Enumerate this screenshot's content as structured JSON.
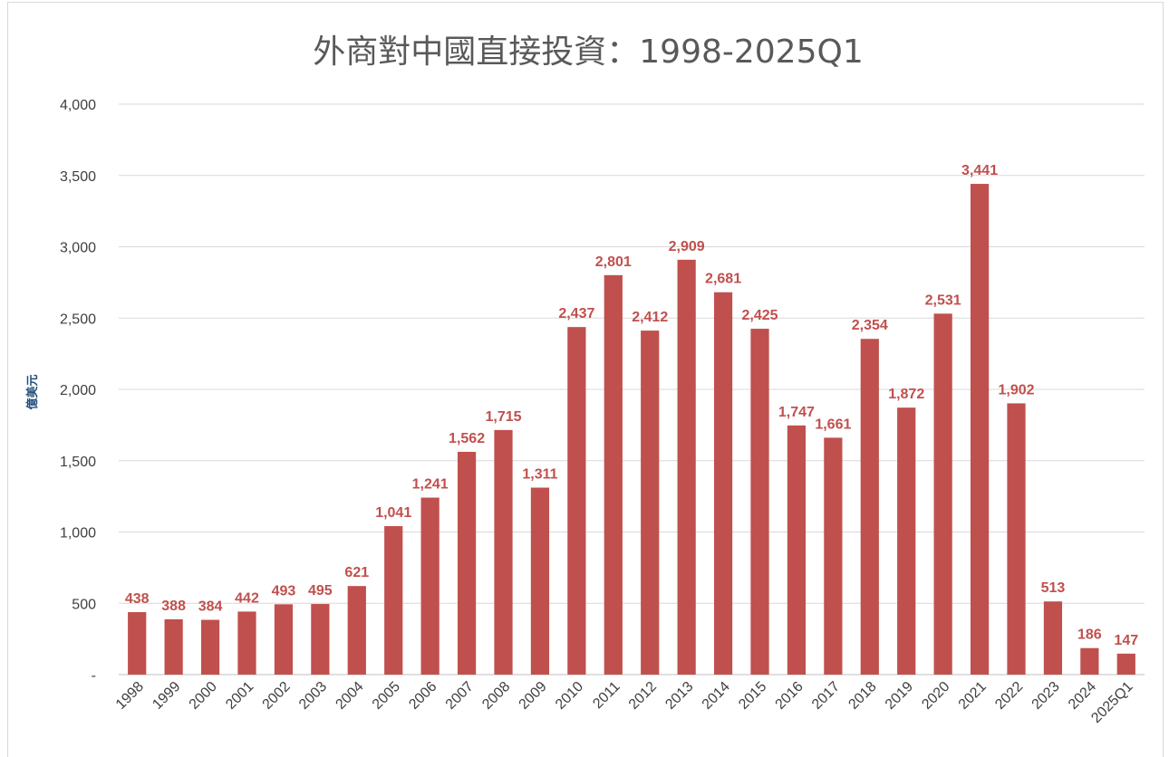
{
  "chart_data": {
    "type": "bar",
    "title": "外商對中國直接投資：1998-2025Q1",
    "ylabel": "億美元",
    "xlabel": "",
    "ylim": [
      0,
      4000
    ],
    "yticks": [
      0,
      500,
      1000,
      1500,
      2000,
      2500,
      3000,
      3500,
      4000
    ],
    "ytick_labels": [
      "-",
      "500",
      "1,000",
      "1,500",
      "2,000",
      "2,500",
      "3,000",
      "3,500",
      "4,000"
    ],
    "categories": [
      "1998",
      "1999",
      "2000",
      "2001",
      "2002",
      "2003",
      "2004",
      "2005",
      "2006",
      "2007",
      "2008",
      "2009",
      "2010",
      "2011",
      "2012",
      "2013",
      "2014",
      "2015",
      "2016",
      "2017",
      "2018",
      "2019",
      "2020",
      "2021",
      "2022",
      "2023",
      "2024",
      "2025Q1"
    ],
    "values": [
      438,
      388,
      384,
      442,
      493,
      495,
      621,
      1041,
      1241,
      1562,
      1715,
      1311,
      2437,
      2801,
      2412,
      2909,
      2681,
      2425,
      1747,
      1661,
      2354,
      1872,
      2531,
      3441,
      1902,
      513,
      186,
      147
    ],
    "value_labels": [
      "438",
      "388",
      "384",
      "442",
      "493",
      "495",
      "621",
      "1,041",
      "1,241",
      "1,562",
      "1,715",
      "1,311",
      "2,437",
      "2,801",
      "2,412",
      "2,909",
      "2,681",
      "2,425",
      "1,747",
      "1,661",
      "2,354",
      "1,872",
      "2,531",
      "3,441",
      "1,902",
      "513",
      "186",
      "147"
    ],
    "grid": true,
    "legend": "none",
    "colors": {
      "bar": "#c0504d",
      "label": "#c0504d",
      "ylabel": "#1f4e79"
    }
  }
}
